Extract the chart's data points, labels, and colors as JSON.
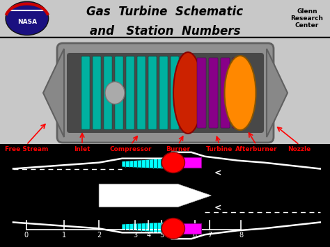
{
  "title_line1": "Gas  Turbine  Schematic",
  "title_line2": "and   Station  Numbers",
  "glenn_text": "Glenn\nResearch\nCenter",
  "bg_color_header": "#d4d0c8",
  "bg_color_schematic": "#c8c8c8",
  "bg_color_2d": "#000000",
  "label_color": "#ff0000",
  "labels": [
    "Free Stream",
    "Inlet",
    "Compressor",
    "Burner",
    "Turbine",
    "Afterburner",
    "Nozzle"
  ],
  "station_numbers": [
    "0",
    "1",
    "2",
    "3",
    "4",
    "5",
    "6",
    "7",
    "8"
  ],
  "cyan_color": "#00ffff",
  "magenta_color": "#ff00ff",
  "red_color": "#ff0000",
  "white_color": "#ffffff",
  "teal_color": "#00b0a0",
  "purple_color": "#880088",
  "orange_color": "#ff8800",
  "gray_engine": "#909090",
  "gray_dark": "#606060"
}
